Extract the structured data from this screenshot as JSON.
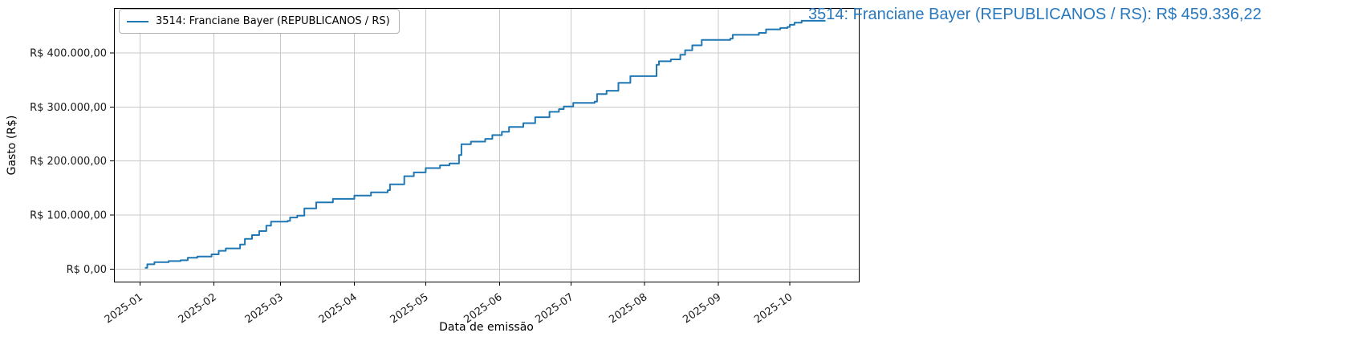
{
  "summary": {
    "text": "3514: Franciane Bayer (REPUBLICANOS / RS): R$ 459.336,22"
  },
  "colors": {
    "line": "#1f77b4",
    "summary_text": "#2878be",
    "grid": "#c8c8c8",
    "spine": "#000000",
    "tick_label": "#1a1a1a"
  },
  "chart_data": {
    "type": "line",
    "title": "",
    "legend_label": "3514: Franciane Bayer (REPUBLICANOS / RS)",
    "legend_position": "upper left",
    "xlabel": "Data de emissão",
    "ylabel": "Gasto (R$)",
    "grid": true,
    "step": "post",
    "x_range_dates": [
      "2024-12-21",
      "2025-10-30"
    ],
    "ylim": [
      -23000,
      483000
    ],
    "x_ticks": [
      {
        "label": "2025-01",
        "date": "2025-01-01"
      },
      {
        "label": "2025-02",
        "date": "2025-02-01"
      },
      {
        "label": "2025-03",
        "date": "2025-03-01"
      },
      {
        "label": "2025-04",
        "date": "2025-04-01"
      },
      {
        "label": "2025-05",
        "date": "2025-05-01"
      },
      {
        "label": "2025-06",
        "date": "2025-06-01"
      },
      {
        "label": "2025-07",
        "date": "2025-07-01"
      },
      {
        "label": "2025-08",
        "date": "2025-08-01"
      },
      {
        "label": "2025-09",
        "date": "2025-09-01"
      },
      {
        "label": "2025-10",
        "date": "2025-10-01"
      }
    ],
    "y_ticks": [
      {
        "label": "R$ 0,00",
        "value": 0
      },
      {
        "label": "R$ 100.000,00",
        "value": 100000
      },
      {
        "label": "R$ 200.000,00",
        "value": 200000
      },
      {
        "label": "R$ 300.000,00",
        "value": 300000
      },
      {
        "label": "R$ 400.000,00",
        "value": 400000
      }
    ],
    "series": [
      {
        "name": "3514: Franciane Bayer (REPUBLICANOS / RS)",
        "final_value_label": "R$ 459.336,22",
        "final_value": 459336.22,
        "points": [
          [
            "2025-01-03",
            2500
          ],
          [
            "2025-01-04",
            9000
          ],
          [
            "2025-01-07",
            13000
          ],
          [
            "2025-01-13",
            15000
          ],
          [
            "2025-01-18",
            16500
          ],
          [
            "2025-01-21",
            21000
          ],
          [
            "2025-01-25",
            23500
          ],
          [
            "2025-01-31",
            27500
          ],
          [
            "2025-02-03",
            34000
          ],
          [
            "2025-02-06",
            38500
          ],
          [
            "2025-02-12",
            45500
          ],
          [
            "2025-02-14",
            56000
          ],
          [
            "2025-02-17",
            63000
          ],
          [
            "2025-02-20",
            70500
          ],
          [
            "2025-02-23",
            80500
          ],
          [
            "2025-02-25",
            88000
          ],
          [
            "2025-03-04",
            89500
          ],
          [
            "2025-03-05",
            95500
          ],
          [
            "2025-03-08",
            99000
          ],
          [
            "2025-03-11",
            112500
          ],
          [
            "2025-03-16",
            123500
          ],
          [
            "2025-03-23",
            130000
          ],
          [
            "2025-04-01",
            136000
          ],
          [
            "2025-04-08",
            142000
          ],
          [
            "2025-04-15",
            146000
          ],
          [
            "2025-04-16",
            157000
          ],
          [
            "2025-04-22",
            172000
          ],
          [
            "2025-04-26",
            179000
          ],
          [
            "2025-05-01",
            187000
          ],
          [
            "2025-05-07",
            192000
          ],
          [
            "2025-05-11",
            195500
          ],
          [
            "2025-05-15",
            211000
          ],
          [
            "2025-05-16",
            231000
          ],
          [
            "2025-05-20",
            236000
          ],
          [
            "2025-05-26",
            241000
          ],
          [
            "2025-05-29",
            248000
          ],
          [
            "2025-06-02",
            254000
          ],
          [
            "2025-06-05",
            263000
          ],
          [
            "2025-06-11",
            270000
          ],
          [
            "2025-06-16",
            281000
          ],
          [
            "2025-06-22",
            291000
          ],
          [
            "2025-06-26",
            296000
          ],
          [
            "2025-06-28",
            301000
          ],
          [
            "2025-07-02",
            307500
          ],
          [
            "2025-07-11",
            310000
          ],
          [
            "2025-07-12",
            324000
          ],
          [
            "2025-07-16",
            330000
          ],
          [
            "2025-07-21",
            344500
          ],
          [
            "2025-07-26",
            357000
          ],
          [
            "2025-08-06",
            378000
          ],
          [
            "2025-08-07",
            384500
          ],
          [
            "2025-08-12",
            388000
          ],
          [
            "2025-08-16",
            396500
          ],
          [
            "2025-08-18",
            405000
          ],
          [
            "2025-08-21",
            414000
          ],
          [
            "2025-08-25",
            424000
          ],
          [
            "2025-09-06",
            426500
          ],
          [
            "2025-09-07",
            433500
          ],
          [
            "2025-09-18",
            437000
          ],
          [
            "2025-09-21",
            443500
          ],
          [
            "2025-09-27",
            446000
          ],
          [
            "2025-09-30",
            448000
          ],
          [
            "2025-10-01",
            452000
          ],
          [
            "2025-10-03",
            456000
          ],
          [
            "2025-10-06",
            459336.22
          ],
          [
            "2025-10-16",
            459336.22
          ]
        ]
      }
    ]
  }
}
